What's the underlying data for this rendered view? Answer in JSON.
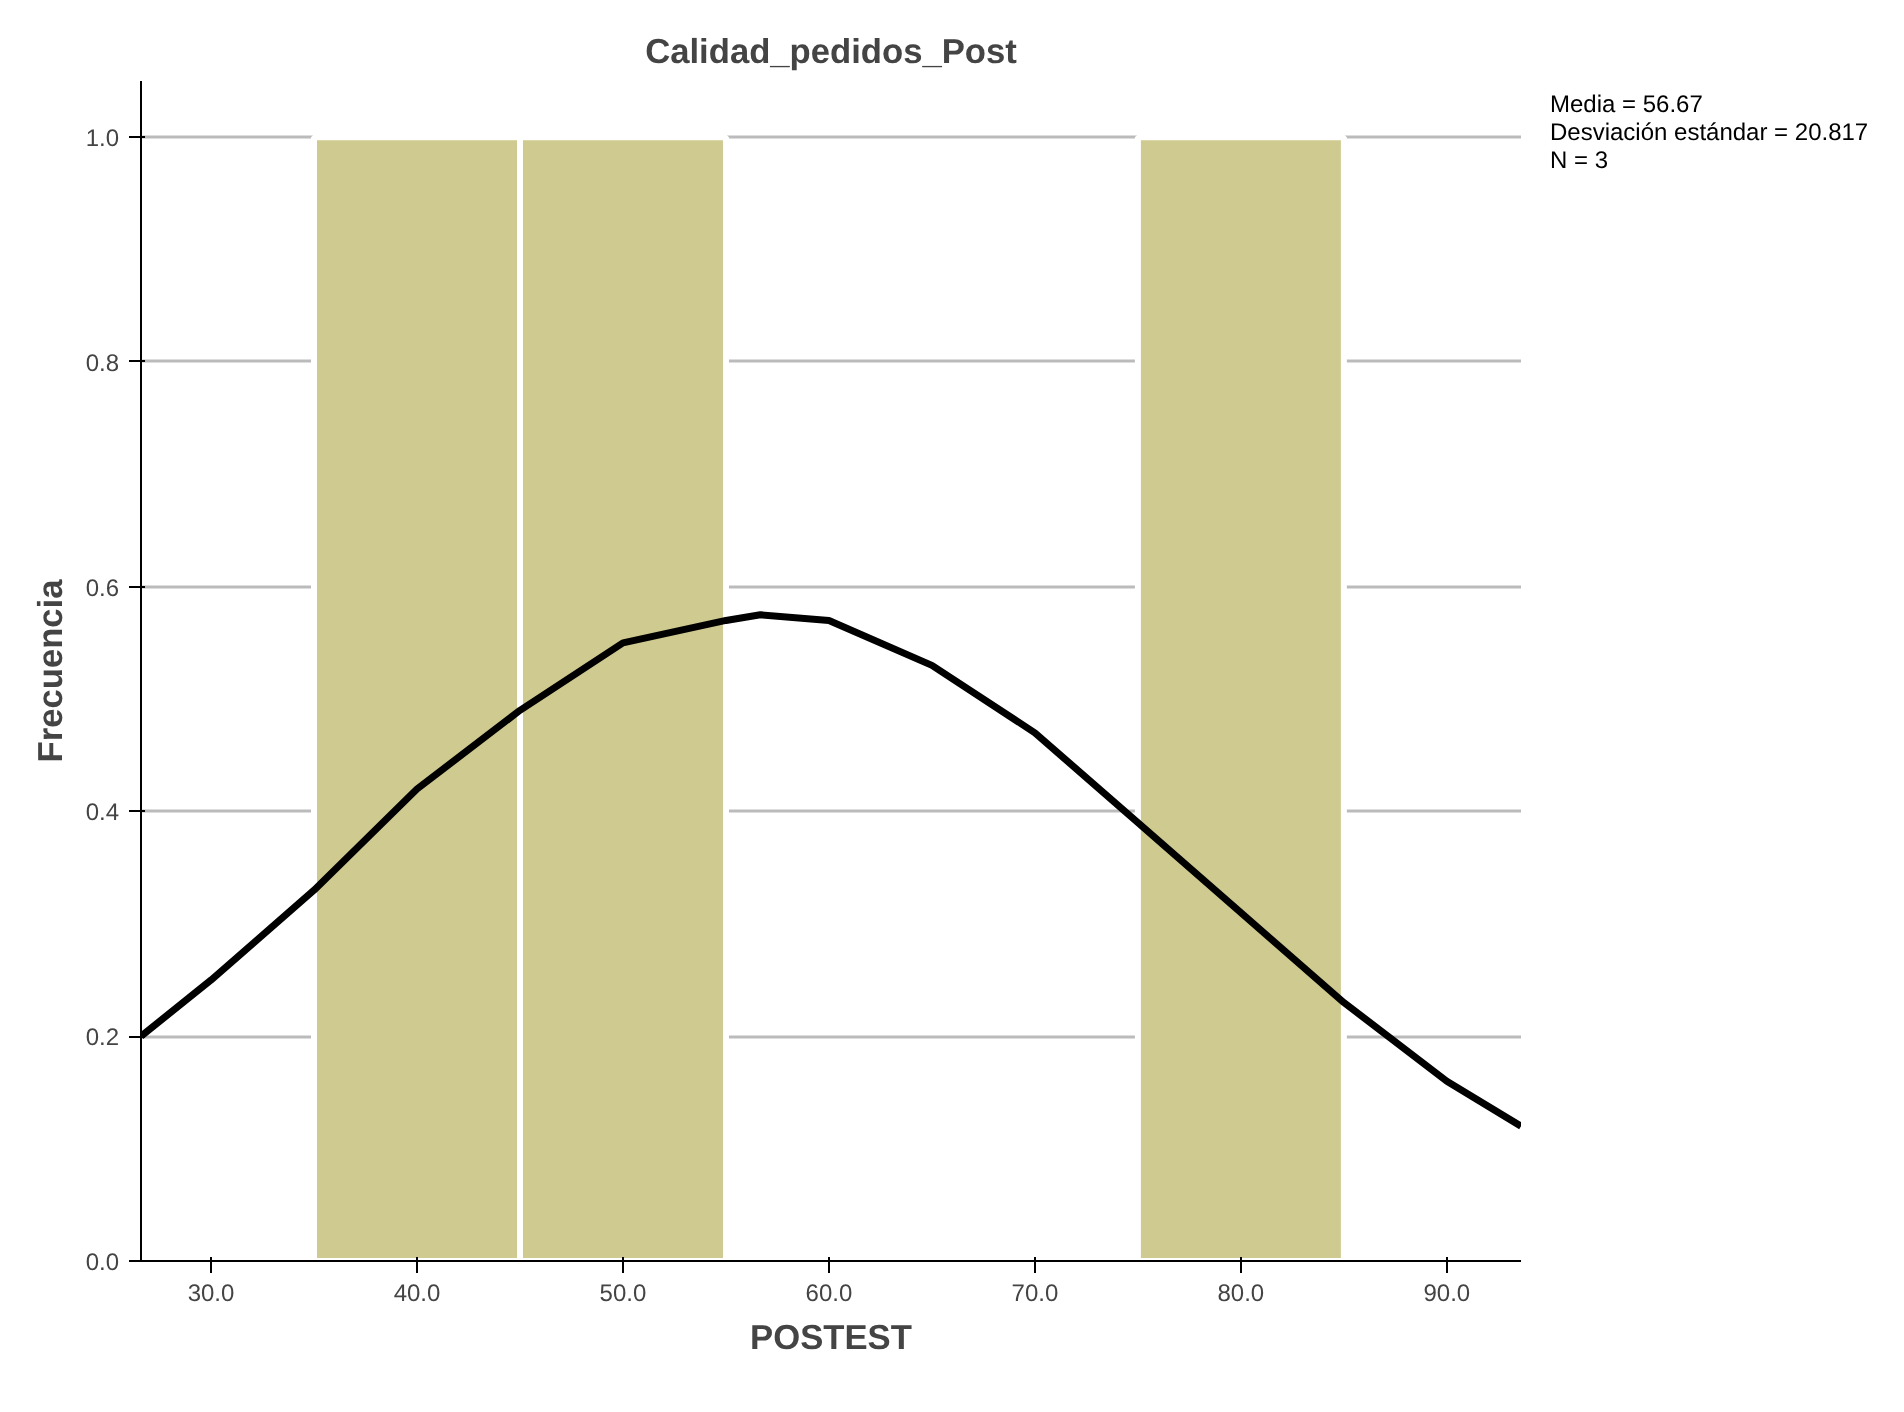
{
  "chart_data": {
    "type": "histogram",
    "title": "Calidad_pedidos_Post",
    "xlabel": "POSTEST",
    "ylabel": "Frecuencia",
    "series": [
      {
        "bins": [
          35,
          45,
          55,
          65,
          75,
          85
        ],
        "values": [
          1,
          1,
          0,
          0,
          1
        ],
        "color": "#cfca8f"
      },
      {
        "type": "line",
        "x": [
          26.6,
          30,
          35,
          40,
          45,
          50,
          55,
          56.67,
          60,
          65,
          70,
          75,
          80,
          85,
          90,
          93.6
        ],
        "values": [
          0.2,
          0.25,
          0.33,
          0.42,
          0.49,
          0.55,
          0.57,
          0.575,
          0.57,
          0.53,
          0.47,
          0.39,
          0.31,
          0.23,
          0.16,
          0.12
        ],
        "color": "#000000"
      }
    ],
    "xlim": [
      26.6,
      93.6
    ],
    "ylim": [
      0,
      1.05
    ],
    "xticks": [
      {
        "value": 30,
        "label": "30.0"
      },
      {
        "value": 40,
        "label": "40.0"
      },
      {
        "value": 50,
        "label": "50.0"
      },
      {
        "value": 60,
        "label": "60.0"
      },
      {
        "value": 70,
        "label": "70.0"
      },
      {
        "value": 80,
        "label": "80.0"
      },
      {
        "value": 90,
        "label": "90.0"
      }
    ],
    "yticks": [
      {
        "value": 0,
        "label": "0.0"
      },
      {
        "value": 0.2,
        "label": "0.2"
      },
      {
        "value": 0.4,
        "label": "0.4"
      },
      {
        "value": 0.6,
        "label": "0.6"
      },
      {
        "value": 0.8,
        "label": "0.8"
      },
      {
        "value": 1,
        "label": "1.0"
      }
    ],
    "grid": "y",
    "annotations": [
      "Media = 56.67",
      "Desviación estándar = 20.817",
      "N = 3"
    ]
  }
}
